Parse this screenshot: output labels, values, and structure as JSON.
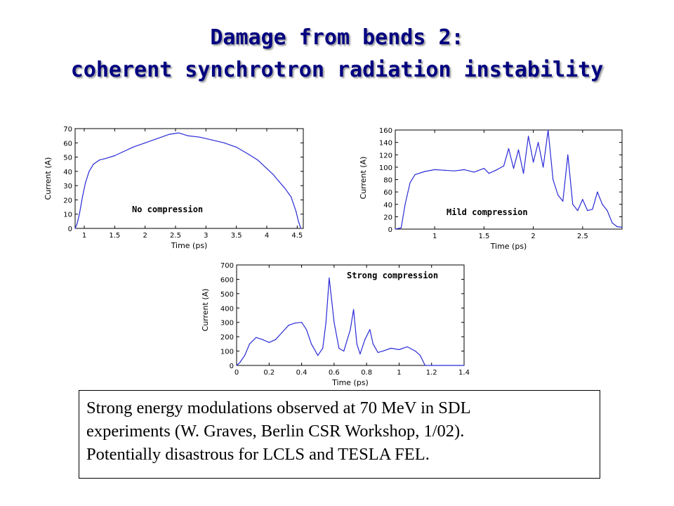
{
  "title": {
    "line1": "Damage from bends 2:",
    "line2": "coherent synchrotron radiation instability"
  },
  "caption": {
    "lines": [
      "Strong energy modulations observed at 70 MeV in SDL",
      "experiments (W. Graves, Berlin CSR Workshop, 1/02).",
      "Potentially disastrous for LCLS and TESLA FEL."
    ]
  },
  "chart_data": [
    {
      "type": "line",
      "annotation": "No compression",
      "xlabel": "Time (ps)",
      "ylabel": "Current (A)",
      "xlim": [
        0.85,
        4.6
      ],
      "ylim": [
        0,
        70
      ],
      "x_ticks": [
        1,
        1.5,
        2,
        2.5,
        3,
        3.5,
        4,
        4.5
      ],
      "x_tick_labels": [
        "1",
        "1.5",
        "2",
        "2.5",
        "3",
        "3.5",
        "4",
        "4.5"
      ],
      "y_ticks": [
        0,
        10,
        20,
        30,
        40,
        50,
        60,
        70
      ],
      "y_tick_labels": [
        "0",
        "10",
        "20",
        "30",
        "40",
        "50",
        "60",
        "70"
      ],
      "series": [
        {
          "color": "#2a2ad6",
          "x": [
            0.85,
            0.88,
            0.92,
            0.97,
            1.02,
            1.08,
            1.15,
            1.25,
            1.35,
            1.5,
            1.65,
            1.8,
            2.0,
            2.2,
            2.4,
            2.55,
            2.7,
            2.9,
            3.1,
            3.3,
            3.5,
            3.7,
            3.85,
            4.0,
            4.1,
            4.2,
            4.3,
            4.4,
            4.48,
            4.52,
            4.56
          ],
          "y": [
            0,
            3,
            10,
            22,
            32,
            40,
            45,
            48,
            49,
            51,
            54,
            57,
            60,
            63,
            66,
            67,
            65,
            64,
            62,
            60,
            57,
            52,
            48,
            42,
            38,
            33,
            28,
            22,
            12,
            5,
            0
          ]
        }
      ]
    },
    {
      "type": "line",
      "annotation": "Mild compression",
      "xlabel": "Time (ps)",
      "ylabel": "Current (A)",
      "xlim": [
        0.6,
        2.9
      ],
      "ylim": [
        0,
        160
      ],
      "x_ticks": [
        1,
        1.5,
        2,
        2.5
      ],
      "x_tick_labels": [
        "1",
        "1.5",
        "2",
        "2.5"
      ],
      "y_ticks": [
        0,
        20,
        40,
        60,
        80,
        100,
        120,
        140,
        160
      ],
      "y_tick_labels": [
        "0",
        "20",
        "40",
        "60",
        "80",
        "100",
        "120",
        "140",
        "160"
      ],
      "series": [
        {
          "color": "#2a2ad6",
          "x": [
            0.6,
            0.66,
            0.7,
            0.75,
            0.8,
            0.9,
            1.0,
            1.1,
            1.2,
            1.3,
            1.4,
            1.5,
            1.55,
            1.62,
            1.7,
            1.75,
            1.8,
            1.85,
            1.9,
            1.95,
            2.0,
            2.05,
            2.1,
            2.15,
            2.2,
            2.25,
            2.3,
            2.35,
            2.4,
            2.45,
            2.5,
            2.55,
            2.6,
            2.65,
            2.7,
            2.75,
            2.8,
            2.85,
            2.9
          ],
          "y": [
            0,
            2,
            40,
            75,
            88,
            93,
            96,
            95,
            94,
            96,
            92,
            98,
            90,
            95,
            102,
            130,
            98,
            128,
            90,
            150,
            108,
            140,
            100,
            160,
            80,
            55,
            45,
            120,
            40,
            30,
            48,
            30,
            32,
            60,
            40,
            30,
            10,
            4,
            3
          ]
        }
      ]
    },
    {
      "type": "line",
      "annotation": "Strong compression",
      "xlabel": "Time (ps)",
      "ylabel": "Current (A)",
      "xlim": [
        0,
        1.4
      ],
      "ylim": [
        0,
        700
      ],
      "x_ticks": [
        0,
        0.2,
        0.4,
        0.6,
        0.8,
        1,
        1.2,
        1.4
      ],
      "x_tick_labels": [
        "0",
        "0.2",
        "0.4",
        "0.6",
        "0.8",
        "1",
        "1.2",
        "1.4"
      ],
      "y_ticks": [
        0,
        100,
        200,
        300,
        400,
        500,
        600,
        700
      ],
      "y_tick_labels": [
        "0",
        "100",
        "200",
        "300",
        "400",
        "500",
        "600",
        "700"
      ],
      "series": [
        {
          "color": "#2a2ad6",
          "x": [
            0.0,
            0.02,
            0.05,
            0.08,
            0.12,
            0.16,
            0.2,
            0.24,
            0.28,
            0.32,
            0.36,
            0.4,
            0.43,
            0.46,
            0.5,
            0.53,
            0.55,
            0.57,
            0.6,
            0.63,
            0.66,
            0.7,
            0.72,
            0.74,
            0.76,
            0.79,
            0.82,
            0.84,
            0.87,
            0.9,
            0.95,
            1.0,
            1.05,
            1.1,
            1.13,
            1.16,
            1.2,
            1.3,
            1.4
          ],
          "y": [
            0,
            20,
            70,
            150,
            195,
            180,
            160,
            180,
            230,
            280,
            295,
            300,
            250,
            150,
            70,
            120,
            300,
            610,
            300,
            120,
            100,
            250,
            390,
            150,
            80,
            180,
            250,
            150,
            90,
            100,
            120,
            110,
            130,
            100,
            70,
            0,
            0,
            0,
            0
          ]
        }
      ]
    }
  ]
}
